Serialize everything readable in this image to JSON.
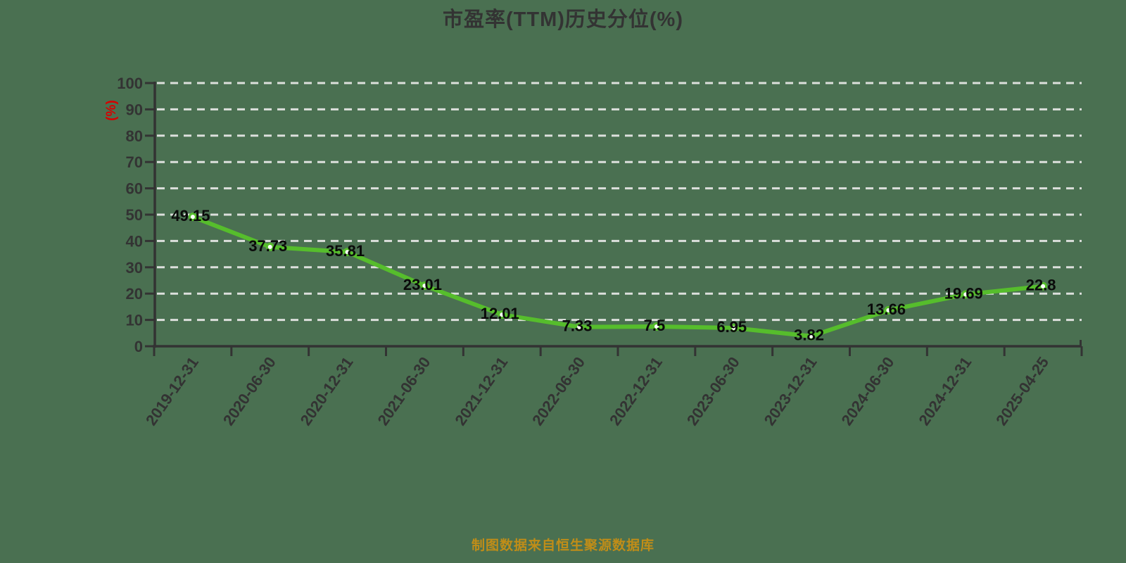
{
  "chart": {
    "title": "市盈率(TTM)历史分位(%)",
    "y_axis_name": "(%)",
    "source_note": "制图数据来自恒生聚源数据库"
  },
  "chart_data": {
    "type": "line",
    "title": "市盈率(TTM)历史分位(%)",
    "categories": [
      "2019-12-31",
      "2020-06-30",
      "2020-12-31",
      "2021-06-30",
      "2021-12-31",
      "2022-06-30",
      "2022-12-31",
      "2023-06-30",
      "2023-12-31",
      "2024-06-30",
      "2024-12-31",
      "2025-04-25"
    ],
    "values": [
      49.15,
      37.73,
      35.81,
      23.01,
      12.01,
      7.33,
      7.5,
      6.95,
      3.82,
      13.66,
      19.69,
      22.8
    ],
    "point_labels": [
      "49.15",
      "37.73",
      "35.81",
      "23.01",
      "12.01",
      "7.33",
      "7.5",
      "6.95",
      "3.82",
      "13.66",
      "19.69",
      "22.8"
    ],
    "xlabel": "",
    "ylabel": "(%)",
    "ylim": [
      0,
      100
    ],
    "y_ticks": [
      0,
      10,
      20,
      30,
      40,
      50,
      60,
      70,
      80,
      90,
      100
    ],
    "grid": "dashed-horizontal",
    "legend": "none",
    "colors": {
      "background": "#4a7051",
      "series_line": "#56bd2c",
      "point_fill": "#ffffff",
      "point_stroke": "#56bd2c",
      "data_label": "#0a0a0a",
      "axis_line": "#333333",
      "tick_label": "#333333",
      "gridline": "#dcdfdc",
      "title": "#333333",
      "y_axis_name": "#d60000",
      "source_note": "#c08d18"
    }
  }
}
